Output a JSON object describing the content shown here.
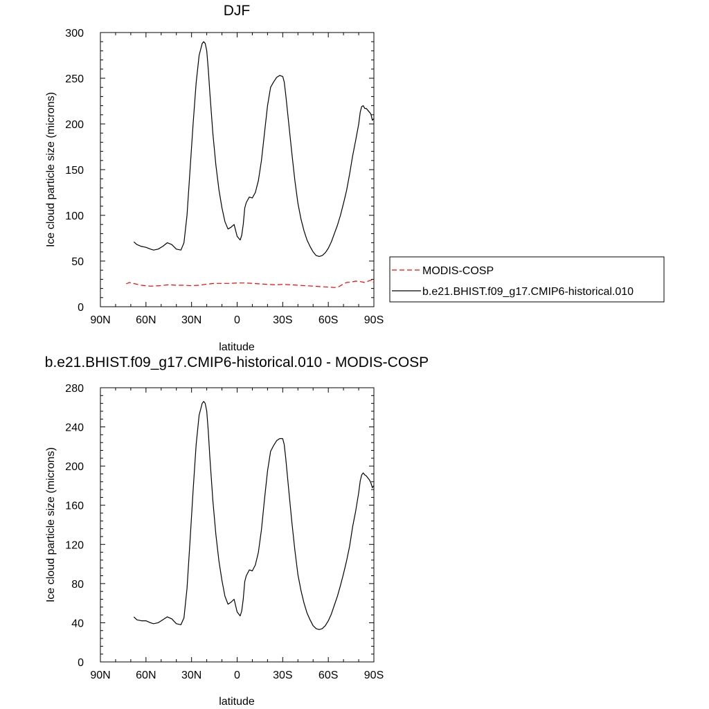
{
  "chart_data": [
    {
      "type": "line",
      "title": "DJF",
      "xlabel": "latitude",
      "ylabel": "Ice cloud particle size (microns)",
      "xlim": [
        -90,
        90
      ],
      "ylim": [
        0,
        300
      ],
      "xticks": [
        -90,
        -60,
        -30,
        0,
        30,
        60,
        90
      ],
      "xtick_labels": [
        "90N",
        "60N",
        "30N",
        "0",
        "30S",
        "60S",
        "90S"
      ],
      "yticks": [
        0,
        50,
        100,
        150,
        200,
        250,
        300
      ],
      "ytick_labels": [
        "0",
        "50",
        "100",
        "150",
        "200",
        "250",
        "300"
      ],
      "grid": false,
      "legend_position": "right",
      "series": [
        {
          "name": "MODIS-COSP",
          "color": "#ff0000",
          "dash": "dashed",
          "x": [
            -73,
            -71,
            -67,
            -63,
            -57,
            -51,
            -45,
            -40,
            -35,
            -30,
            -25,
            -21,
            -18,
            -15,
            -10,
            -5,
            0,
            5,
            10,
            15,
            20,
            25,
            30,
            35,
            40,
            45,
            50,
            55,
            60,
            64,
            67,
            70,
            72,
            75,
            78,
            81,
            84,
            87,
            89,
            90
          ],
          "values": [
            25,
            26.5,
            25,
            23.5,
            22.5,
            23,
            24,
            23.5,
            23.5,
            23,
            23.5,
            24.5,
            25,
            25.5,
            25.5,
            25.5,
            26,
            26,
            25.5,
            25,
            24.5,
            24,
            24.5,
            24,
            23.5,
            23,
            22.5,
            22,
            21.5,
            21,
            22,
            25,
            26.5,
            27,
            28,
            27.5,
            26.5,
            28.5,
            29.5,
            26
          ]
        },
        {
          "name": "b.e21.BHIST.f09_g17.CMIP6-historical.010",
          "color": "#000000",
          "dash": "solid",
          "x": [
            -68,
            -66,
            -63,
            -60,
            -57,
            -55,
            -52,
            -49,
            -46,
            -43,
            -40,
            -37,
            -35,
            -33,
            -31,
            -29,
            -27,
            -25,
            -23,
            -22,
            -21,
            -20,
            -19,
            -18,
            -16,
            -14,
            -12,
            -10,
            -8,
            -6,
            -4,
            -2,
            0,
            2,
            3,
            4,
            5,
            6,
            8,
            10,
            12,
            14,
            16,
            18,
            20,
            22,
            24,
            26,
            28,
            30,
            31,
            32,
            34,
            36,
            38,
            40,
            42,
            44,
            46,
            48,
            50,
            52,
            54,
            56,
            58,
            60,
            62,
            64,
            66,
            68,
            70,
            72,
            74,
            76,
            78,
            80,
            81,
            82,
            83,
            84,
            85,
            86,
            87,
            88,
            89,
            90
          ],
          "values": [
            71,
            68,
            66,
            65,
            63,
            62,
            63,
            66,
            70,
            68,
            63,
            62,
            70,
            100,
            150,
            200,
            245,
            275,
            288,
            290,
            288,
            280,
            260,
            235,
            190,
            155,
            128,
            108,
            93,
            85,
            87,
            90,
            77,
            73,
            78,
            90,
            108,
            114,
            120,
            119,
            125,
            138,
            160,
            190,
            220,
            240,
            246,
            251,
            253,
            252,
            246,
            232,
            200,
            168,
            138,
            113,
            96,
            83,
            73,
            66,
            60,
            56,
            55,
            56,
            59,
            64,
            71,
            80,
            89,
            100,
            113,
            127,
            145,
            165,
            182,
            200,
            213,
            219,
            220,
            217,
            217,
            215,
            213,
            211,
            204,
            206
          ]
        }
      ]
    },
    {
      "type": "line",
      "title": "b.e21.BHIST.f09_g17.CMIP6-historical.010 - MODIS-COSP",
      "xlabel": "latitude",
      "ylabel": "Ice cloud particle size (microns)",
      "xlim": [
        -90,
        90
      ],
      "ylim": [
        0,
        280
      ],
      "xticks": [
        -90,
        -60,
        -30,
        0,
        30,
        60,
        90
      ],
      "xtick_labels": [
        "90N",
        "60N",
        "30N",
        "0",
        "30S",
        "60S",
        "90S"
      ],
      "yticks": [
        0,
        40,
        80,
        120,
        160,
        200,
        240,
        280
      ],
      "ytick_labels": [
        "0",
        "40",
        "80",
        "120",
        "160",
        "200",
        "240",
        "280"
      ],
      "grid": false,
      "series": [
        {
          "color": "#000000",
          "dash": "solid",
          "x": [
            -68,
            -66,
            -63,
            -60,
            -57,
            -55,
            -52,
            -49,
            -46,
            -43,
            -40,
            -37,
            -35,
            -33,
            -31,
            -29,
            -27,
            -25,
            -23,
            -22,
            -21,
            -20,
            -19,
            -18,
            -16,
            -14,
            -12,
            -10,
            -8,
            -6,
            -4,
            -2,
            0,
            2,
            3,
            4,
            5,
            6,
            8,
            10,
            12,
            14,
            16,
            18,
            20,
            22,
            24,
            26,
            28,
            30,
            31,
            32,
            34,
            36,
            38,
            40,
            42,
            44,
            46,
            48,
            50,
            52,
            54,
            56,
            58,
            60,
            62,
            64,
            66,
            68,
            70,
            72,
            74,
            76,
            78,
            80,
            81,
            82,
            83,
            84,
            85,
            86,
            87,
            88,
            89,
            90
          ],
          "values": [
            46,
            43,
            42,
            42,
            40,
            39,
            40,
            43,
            46,
            44,
            39,
            38,
            45,
            75,
            124,
            175,
            222,
            252,
            264,
            266,
            264,
            256,
            236,
            210,
            165,
            130,
            103,
            83,
            67,
            59,
            61,
            64,
            51,
            47,
            52,
            64,
            82,
            88,
            94,
            93,
            99,
            112,
            135,
            166,
            195,
            215,
            221,
            226,
            228,
            228,
            222,
            208,
            175,
            143,
            114,
            89,
            73,
            60,
            50,
            43,
            37,
            34,
            33,
            34,
            37,
            42,
            49,
            58,
            67,
            78,
            90,
            103,
            118,
            138,
            154,
            173,
            185,
            191,
            193,
            191,
            190,
            188,
            186,
            183,
            178,
            180
          ]
        }
      ]
    }
  ]
}
